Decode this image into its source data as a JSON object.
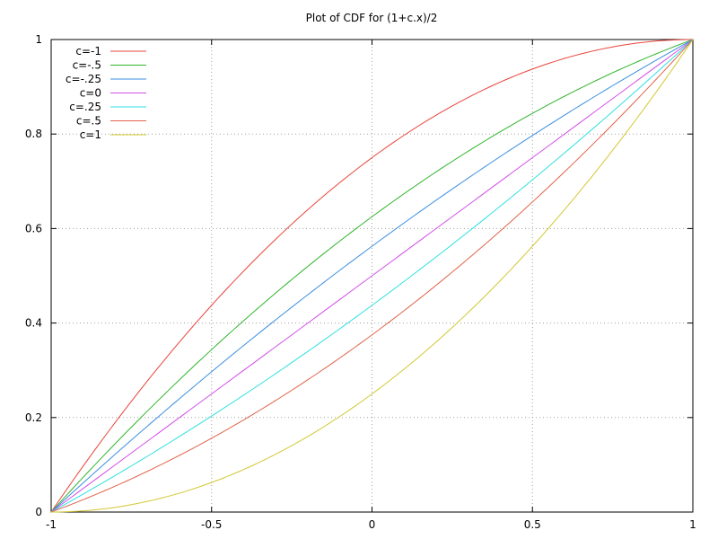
{
  "chart_data": {
    "type": "line",
    "title": "Plot of CDF for (1+c.x)/2",
    "xlabel": "",
    "ylabel": "",
    "xlim": [
      -1,
      1
    ],
    "ylim": [
      0,
      1
    ],
    "grid": true,
    "legend_position": "top-left",
    "x_ticks": [
      {
        "value": -1,
        "label": "-1"
      },
      {
        "value": -0.5,
        "label": "-0.5"
      },
      {
        "value": 0,
        "label": "0"
      },
      {
        "value": 0.5,
        "label": "0.5"
      },
      {
        "value": 1,
        "label": "1"
      }
    ],
    "y_ticks": [
      {
        "value": 0,
        "label": "0"
      },
      {
        "value": 0.2,
        "label": "0.2"
      },
      {
        "value": 0.4,
        "label": "0.4"
      },
      {
        "value": 0.6,
        "label": "0.6"
      },
      {
        "value": 0.8,
        "label": "0.8"
      },
      {
        "value": 1,
        "label": "1"
      }
    ],
    "x": [
      -1,
      -0.75,
      -0.5,
      -0.25,
      0,
      0.25,
      0.5,
      0.75,
      1
    ],
    "series": [
      {
        "name": "c=-1",
        "c": -1,
        "color": "#e8443a",
        "values": [
          0,
          0.234,
          0.438,
          0.609,
          0.75,
          0.859,
          0.938,
          0.984,
          1
        ]
      },
      {
        "name": "c=-.5",
        "c": -0.5,
        "color": "#2fb52b",
        "values": [
          0,
          0.18,
          0.344,
          0.492,
          0.625,
          0.742,
          0.844,
          0.93,
          1
        ]
      },
      {
        "name": "c=-.25",
        "c": -0.25,
        "color": "#3a8fe0",
        "values": [
          0,
          0.152,
          0.297,
          0.434,
          0.5625,
          0.684,
          0.797,
          0.902,
          1
        ]
      },
      {
        "name": "c=0",
        "c": 0,
        "color": "#d24ee8",
        "values": [
          0,
          0.125,
          0.25,
          0.375,
          0.5,
          0.625,
          0.75,
          0.875,
          1
        ]
      },
      {
        "name": "c=.25",
        "c": 0.25,
        "color": "#2fe0df",
        "values": [
          0,
          0.098,
          0.203,
          0.316,
          0.4375,
          0.566,
          0.703,
          0.848,
          1
        ]
      },
      {
        "name": "c=.5",
        "c": 0.5,
        "color": "#e0634a",
        "values": [
          0,
          0.07,
          0.156,
          0.258,
          0.375,
          0.508,
          0.656,
          0.82,
          1
        ]
      },
      {
        "name": "c=1",
        "c": 1,
        "color": "#d2c832",
        "values": [
          0,
          0.016,
          0.063,
          0.141,
          0.25,
          0.391,
          0.563,
          0.766,
          1
        ]
      }
    ]
  }
}
